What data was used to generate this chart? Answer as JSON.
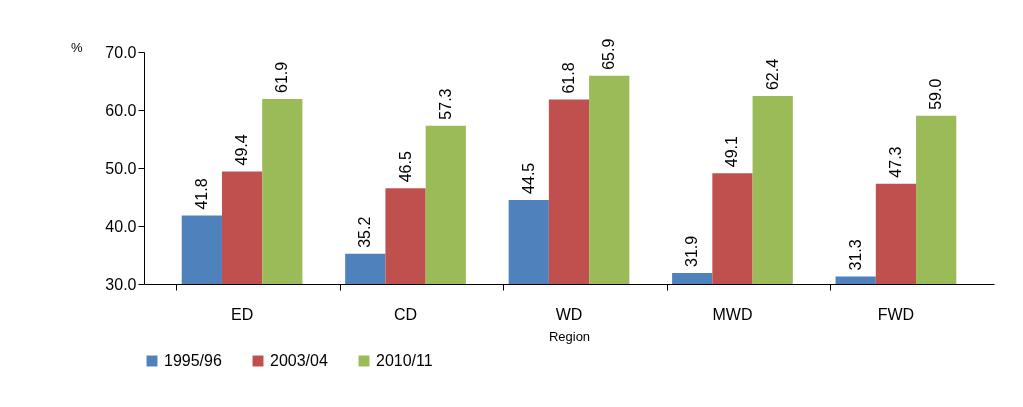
{
  "chart_data": {
    "type": "bar",
    "xlabel": "Region",
    "ylabel": "%",
    "categories": [
      "ED",
      "CD",
      "WD",
      "MWD",
      "FWD"
    ],
    "series": [
      {
        "name": "1995/96",
        "color": "#4f81bd",
        "values": [
          41.8,
          35.2,
          44.5,
          31.9,
          31.3
        ],
        "value_labels": [
          "41.8",
          "35.2",
          "44.5",
          "31.9",
          "31.3"
        ]
      },
      {
        "name": "2003/04",
        "color": "#c0504d",
        "values": [
          49.4,
          46.5,
          61.8,
          49.1,
          47.3
        ],
        "value_labels": [
          "49.4",
          "46.5",
          "61.8",
          "49.1",
          "47.3"
        ]
      },
      {
        "name": "2010/11",
        "color": "#9bbb59",
        "values": [
          61.9,
          57.3,
          65.9,
          62.4,
          59.0
        ],
        "value_labels": [
          "61.9",
          "57.3",
          "65.9",
          "62.4",
          "59.0"
        ]
      }
    ],
    "ylim": [
      30,
      70
    ],
    "yticks": [
      {
        "value": 30,
        "label": "30.0"
      },
      {
        "value": 40,
        "label": "40.0"
      },
      {
        "value": 50,
        "label": "50.0"
      },
      {
        "value": 60,
        "label": "60.0"
      },
      {
        "value": 70,
        "label": "70.0"
      }
    ],
    "grid": false,
    "legend": "bottom"
  }
}
